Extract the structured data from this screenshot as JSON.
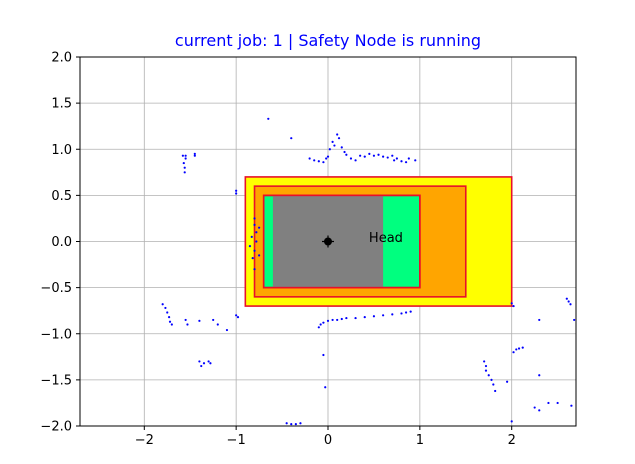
{
  "chart_data": {
    "type": "scatter",
    "title": "current job: 1 | Safety Node is running",
    "title_color": "#0000ff",
    "xlabel": "",
    "ylabel": "",
    "xlim": [
      -2.7,
      2.7
    ],
    "ylim": [
      -2.0,
      2.0
    ],
    "xticks": [
      -2,
      -1,
      0,
      1,
      2
    ],
    "yticks": [
      -2.0,
      -1.5,
      -1.0,
      -0.5,
      0.0,
      0.5,
      1.0,
      1.5,
      2.0
    ],
    "xtick_labels": [
      "−2",
      "−1",
      "0",
      "1",
      "2"
    ],
    "ytick_labels": [
      "−2.0",
      "−1.5",
      "−1.0",
      "−0.5",
      "0.0",
      "0.5",
      "1.0",
      "1.5",
      "2.0"
    ],
    "grid": true,
    "zones": [
      {
        "x": [
          -0.9,
          2.0
        ],
        "y": [
          -0.7,
          0.7
        ],
        "fill": "#ffff00",
        "edge": "#e8102a"
      },
      {
        "x": [
          -0.8,
          1.5
        ],
        "y": [
          -0.6,
          0.6
        ],
        "fill": "#ffa500",
        "edge": "#e8102a"
      },
      {
        "x": [
          -0.7,
          1.0
        ],
        "y": [
          -0.5,
          0.5
        ],
        "fill": "#00ff7f",
        "edge": "#e8102a"
      }
    ],
    "body": {
      "x": [
        -0.6,
        0.6
      ],
      "y": [
        -0.5,
        0.5
      ],
      "fill": "#808080"
    },
    "origin_marker": {
      "x": 0.0,
      "y": 0.0,
      "color": "#000000"
    },
    "annotation": {
      "text": "Head",
      "x": 0.5,
      "y": 0.05
    },
    "point_color": "#0000ff",
    "points": [
      [
        -0.65,
        1.33
      ],
      [
        -0.4,
        1.12
      ],
      [
        -0.2,
        0.9
      ],
      [
        -0.15,
        0.88
      ],
      [
        -0.1,
        0.87
      ],
      [
        -0.05,
        0.86
      ],
      [
        -0.02,
        0.9
      ],
      [
        0.0,
        0.92
      ],
      [
        0.02,
        1.0
      ],
      [
        0.05,
        1.08
      ],
      [
        0.07,
        1.04
      ],
      [
        0.1,
        1.16
      ],
      [
        0.12,
        1.12
      ],
      [
        0.15,
        1.02
      ],
      [
        0.18,
        0.97
      ],
      [
        0.2,
        0.94
      ],
      [
        0.25,
        0.9
      ],
      [
        0.3,
        0.88
      ],
      [
        0.35,
        0.93
      ],
      [
        0.4,
        0.92
      ],
      [
        0.45,
        0.95
      ],
      [
        0.5,
        0.93
      ],
      [
        0.55,
        0.94
      ],
      [
        0.6,
        0.92
      ],
      [
        0.65,
        0.91
      ],
      [
        0.7,
        0.93
      ],
      [
        0.72,
        0.88
      ],
      [
        0.75,
        0.9
      ],
      [
        0.8,
        0.87
      ],
      [
        0.85,
        0.86
      ],
      [
        0.88,
        0.9
      ],
      [
        0.95,
        0.88
      ],
      [
        -1.55,
        0.93
      ],
      [
        -1.55,
        0.9
      ],
      [
        -1.57,
        0.85
      ],
      [
        -1.56,
        0.8
      ],
      [
        -1.56,
        0.75
      ],
      [
        -1.58,
        0.93
      ],
      [
        -1.45,
        0.95
      ],
      [
        -1.45,
        0.93
      ],
      [
        -1.0,
        0.55
      ],
      [
        -1.0,
        0.52
      ],
      [
        -0.8,
        0.25
      ],
      [
        -0.8,
        0.18
      ],
      [
        -0.78,
        0.1
      ],
      [
        -0.78,
        0.0
      ],
      [
        -0.8,
        -0.1
      ],
      [
        -0.82,
        -0.18
      ],
      [
        -0.8,
        -0.3
      ],
      [
        -0.85,
        -0.05
      ],
      [
        -0.83,
        0.05
      ],
      [
        -0.75,
        0.15
      ],
      [
        -0.75,
        -0.15
      ],
      [
        -0.1,
        -0.93
      ],
      [
        -0.08,
        -0.9
      ],
      [
        -0.05,
        -0.88
      ],
      [
        0.0,
        -0.86
      ],
      [
        0.05,
        -0.85
      ],
      [
        0.1,
        -0.85
      ],
      [
        0.15,
        -0.84
      ],
      [
        0.2,
        -0.83
      ],
      [
        0.3,
        -0.83
      ],
      [
        0.4,
        -0.82
      ],
      [
        0.5,
        -0.81
      ],
      [
        0.6,
        -0.8
      ],
      [
        0.7,
        -0.79
      ],
      [
        0.8,
        -0.78
      ],
      [
        0.85,
        -0.77
      ],
      [
        0.9,
        -0.76
      ],
      [
        -1.8,
        -0.68
      ],
      [
        -1.77,
        -0.72
      ],
      [
        -1.75,
        -0.77
      ],
      [
        -1.73,
        -0.82
      ],
      [
        -1.72,
        -0.87
      ],
      [
        -1.7,
        -0.9
      ],
      [
        -1.55,
        -0.85
      ],
      [
        -1.53,
        -0.9
      ],
      [
        -1.4,
        -0.86
      ],
      [
        -1.25,
        -0.85
      ],
      [
        -1.2,
        -0.9
      ],
      [
        -1.1,
        -0.96
      ],
      [
        -1.0,
        -0.8
      ],
      [
        -0.98,
        -0.82
      ],
      [
        -1.4,
        -1.3
      ],
      [
        -1.35,
        -1.32
      ],
      [
        -1.3,
        -1.3
      ],
      [
        -1.28,
        -1.32
      ],
      [
        -1.38,
        -1.35
      ],
      [
        -0.05,
        -1.23
      ],
      [
        -0.03,
        -1.58
      ],
      [
        -0.45,
        -1.97
      ],
      [
        -0.4,
        -1.98
      ],
      [
        -0.35,
        -1.98
      ],
      [
        -0.3,
        -1.97
      ],
      [
        1.7,
        -1.3
      ],
      [
        1.72,
        -1.35
      ],
      [
        1.75,
        -1.45
      ],
      [
        1.78,
        -1.5
      ],
      [
        1.8,
        -1.55
      ],
      [
        1.82,
        -1.62
      ],
      [
        1.72,
        -1.4
      ],
      [
        2.0,
        -0.67
      ],
      [
        2.02,
        -0.7
      ],
      [
        2.02,
        -1.2
      ],
      [
        2.05,
        -1.17
      ],
      [
        2.08,
        -1.16
      ],
      [
        2.12,
        -1.15
      ],
      [
        1.95,
        -1.52
      ],
      [
        2.0,
        -1.95
      ],
      [
        2.3,
        -0.85
      ],
      [
        2.3,
        -1.45
      ],
      [
        2.25,
        -1.8
      ],
      [
        2.3,
        -1.83
      ],
      [
        2.4,
        -1.75
      ],
      [
        2.5,
        -1.75
      ],
      [
        2.6,
        -0.62
      ],
      [
        2.62,
        -0.65
      ],
      [
        2.64,
        -0.68
      ],
      [
        2.68,
        -0.85
      ],
      [
        2.65,
        -1.78
      ]
    ]
  }
}
